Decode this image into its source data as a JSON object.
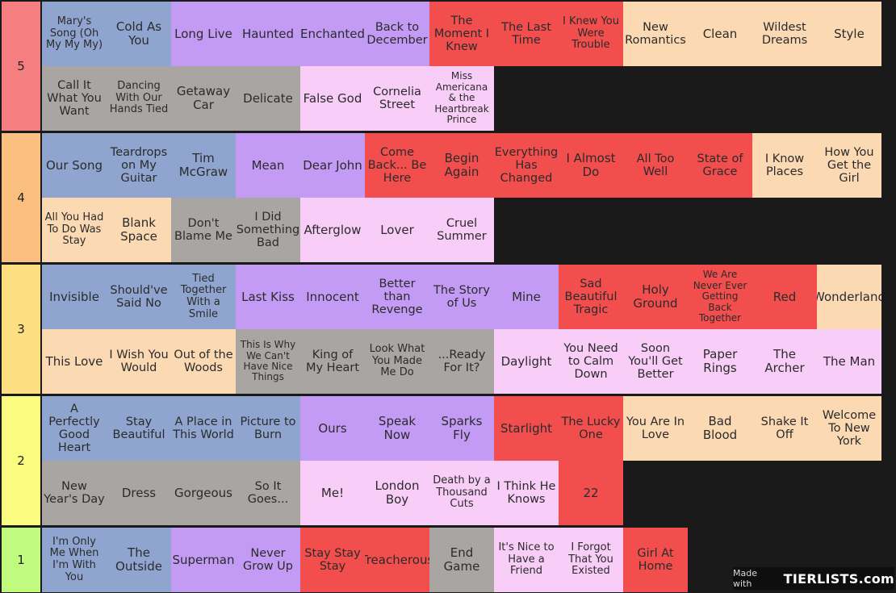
{
  "tiers": [
    {
      "label": "5",
      "color": "#f57f80",
      "items": [
        {
          "text": "Mary's Song (Oh My My My)",
          "color": "blue"
        },
        {
          "text": "Cold As You",
          "color": "blue"
        },
        {
          "text": "Long Live",
          "color": "purple"
        },
        {
          "text": "Haunted",
          "color": "purple"
        },
        {
          "text": "Enchanted",
          "color": "purple"
        },
        {
          "text": "Back to December",
          "color": "purple"
        },
        {
          "text": "The Moment I Knew",
          "color": "red"
        },
        {
          "text": "The Last Time",
          "color": "red"
        },
        {
          "text": "I Knew You Were Trouble",
          "color": "red"
        },
        {
          "text": "New Romantics",
          "color": "peach"
        },
        {
          "text": "Clean",
          "color": "peach"
        },
        {
          "text": "Wildest Dreams",
          "color": "peach"
        },
        {
          "text": "Style",
          "color": "peach"
        },
        {
          "text": "Call It What You Want",
          "color": "gray"
        },
        {
          "text": "Dancing With Our Hands Tied",
          "color": "gray"
        },
        {
          "text": "Getaway Car",
          "color": "gray"
        },
        {
          "text": "Delicate",
          "color": "gray"
        },
        {
          "text": "False God",
          "color": "pink"
        },
        {
          "text": "Cornelia Street",
          "color": "pink"
        },
        {
          "text": "Miss Americana & the Heartbreak Prince",
          "color": "pink"
        }
      ]
    },
    {
      "label": "4",
      "color": "#fbbf80",
      "items": [
        {
          "text": "Our Song",
          "color": "blue"
        },
        {
          "text": "Teardrops on My Guitar",
          "color": "blue"
        },
        {
          "text": "Tim McGraw",
          "color": "blue"
        },
        {
          "text": "Mean",
          "color": "purple"
        },
        {
          "text": "Dear John",
          "color": "purple"
        },
        {
          "text": "Come Back... Be Here",
          "color": "red"
        },
        {
          "text": "Begin Again",
          "color": "red"
        },
        {
          "text": "Everything Has Changed",
          "color": "red"
        },
        {
          "text": "I Almost Do",
          "color": "red"
        },
        {
          "text": "All Too Well",
          "color": "red"
        },
        {
          "text": "State of Grace",
          "color": "red"
        },
        {
          "text": "I Know Places",
          "color": "peach"
        },
        {
          "text": "How You Get the Girl",
          "color": "peach"
        },
        {
          "text": "All You Had To Do Was Stay",
          "color": "peach"
        },
        {
          "text": "Blank Space",
          "color": "peach"
        },
        {
          "text": "Don't Blame Me",
          "color": "gray"
        },
        {
          "text": "I Did Something Bad",
          "color": "gray"
        },
        {
          "text": "Afterglow",
          "color": "pink"
        },
        {
          "text": "Lover",
          "color": "pink"
        },
        {
          "text": "Cruel Summer",
          "color": "pink"
        }
      ]
    },
    {
      "label": "3",
      "color": "#fbdf80",
      "items": [
        {
          "text": "Invisible",
          "color": "blue"
        },
        {
          "text": "Should've Said No",
          "color": "blue"
        },
        {
          "text": "Tied Together With a Smile",
          "color": "blue"
        },
        {
          "text": "Last Kiss",
          "color": "purple"
        },
        {
          "text": "Innocent",
          "color": "purple"
        },
        {
          "text": "Better than Revenge",
          "color": "purple"
        },
        {
          "text": "The Story of Us",
          "color": "purple"
        },
        {
          "text": "Mine",
          "color": "purple"
        },
        {
          "text": "Sad Beautiful Tragic",
          "color": "red"
        },
        {
          "text": "Holy Ground",
          "color": "red"
        },
        {
          "text": "We Are Never Ever Getting Back Together",
          "color": "red"
        },
        {
          "text": "Red",
          "color": "red"
        },
        {
          "text": "Wonderland",
          "color": "peach"
        },
        {
          "text": "This Love",
          "color": "peach"
        },
        {
          "text": "I Wish You Would",
          "color": "peach"
        },
        {
          "text": "Out of the Woods",
          "color": "peach"
        },
        {
          "text": "This Is Why We Can't Have Nice Things",
          "color": "gray"
        },
        {
          "text": "King of My Heart",
          "color": "gray"
        },
        {
          "text": "Look What You Made Me Do",
          "color": "gray"
        },
        {
          "text": "...Ready For It?",
          "color": "gray"
        },
        {
          "text": "Daylight",
          "color": "pink"
        },
        {
          "text": "You Need to Calm Down",
          "color": "pink"
        },
        {
          "text": "Soon You'll Get Better",
          "color": "pink"
        },
        {
          "text": "Paper Rings",
          "color": "pink"
        },
        {
          "text": "The Archer",
          "color": "pink"
        },
        {
          "text": "The Man",
          "color": "pink"
        }
      ]
    },
    {
      "label": "2",
      "color": "#fbfb80",
      "items": [
        {
          "text": "A Perfectly Good Heart",
          "color": "blue"
        },
        {
          "text": "Stay Beautiful",
          "color": "blue"
        },
        {
          "text": "A Place in This World",
          "color": "blue"
        },
        {
          "text": "Picture to Burn",
          "color": "blue"
        },
        {
          "text": "Ours",
          "color": "purple"
        },
        {
          "text": "Speak Now",
          "color": "purple"
        },
        {
          "text": "Sparks Fly",
          "color": "purple"
        },
        {
          "text": "Starlight",
          "color": "red"
        },
        {
          "text": "The Lucky One",
          "color": "red"
        },
        {
          "text": "You Are In Love",
          "color": "peach"
        },
        {
          "text": "Bad Blood",
          "color": "peach"
        },
        {
          "text": "Shake It Off",
          "color": "peach"
        },
        {
          "text": "Welcome To New York",
          "color": "peach"
        },
        {
          "text": "New Year's Day",
          "color": "gray"
        },
        {
          "text": "Dress",
          "color": "gray"
        },
        {
          "text": "Gorgeous",
          "color": "gray"
        },
        {
          "text": "So It Goes...",
          "color": "gray"
        },
        {
          "text": "Me!",
          "color": "pink"
        },
        {
          "text": "London Boy",
          "color": "pink"
        },
        {
          "text": "Death by a Thousand Cuts",
          "color": "pink"
        },
        {
          "text": "I Think He Knows",
          "color": "pink"
        },
        {
          "text": "22",
          "color": "red"
        }
      ]
    },
    {
      "label": "1",
      "color": "#c0fb80",
      "items": [
        {
          "text": "I'm Only Me When I'm With You",
          "color": "blue"
        },
        {
          "text": "The Outside",
          "color": "blue"
        },
        {
          "text": "Superman",
          "color": "purple"
        },
        {
          "text": "Never Grow Up",
          "color": "purple"
        },
        {
          "text": "Stay Stay Stay",
          "color": "red"
        },
        {
          "text": "Treacherous",
          "color": "red"
        },
        {
          "text": "End Game",
          "color": "gray"
        },
        {
          "text": "It's Nice to Have a Friend",
          "color": "pink"
        },
        {
          "text": "I Forgot That You Existed",
          "color": "pink"
        },
        {
          "text": "Girl At Home",
          "color": "red"
        }
      ]
    }
  ],
  "watermark": {
    "prefix": "Made with",
    "brand": "TIERLISTS.com"
  }
}
